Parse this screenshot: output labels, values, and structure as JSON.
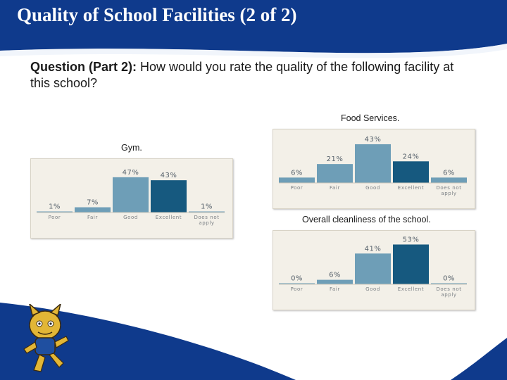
{
  "slide": {
    "title": "Quality of School Facilities (2 of 2)",
    "question_label": "Question (Part 2):",
    "question_text": " How would you rate the quality of the following facility at this school?",
    "colors": {
      "header_navy": "#0f3a8c",
      "bar_light": "#6e9eb7",
      "bar_dark": "#16597f",
      "chart_bg": "#f3f0e8"
    },
    "mascot_icon": "wildcat-mascot-icon"
  },
  "chart_data": [
    {
      "type": "bar",
      "title": "Gym.",
      "categories": [
        "Poor",
        "Fair",
        "Good",
        "Excellent",
        "Does not apply"
      ],
      "category_display": [
        [
          "Poor"
        ],
        [
          "Fair"
        ],
        [
          "Good"
        ],
        [
          "Excellent"
        ],
        [
          "Does not",
          "apply"
        ]
      ],
      "values": [
        1,
        7,
        47,
        43,
        1
      ],
      "data_labels": [
        "1%",
        "7%",
        "47%",
        "43%",
        "1%"
      ],
      "unit": "%",
      "ylim": [
        0,
        60
      ],
      "grid": false,
      "highlight_category": "Excellent"
    },
    {
      "type": "bar",
      "title": "Food Services.",
      "categories": [
        "Poor",
        "Fair",
        "Good",
        "Excellent",
        "Does not apply"
      ],
      "category_display": [
        [
          "Poor"
        ],
        [
          "Fair"
        ],
        [
          "Good"
        ],
        [
          "Excellent"
        ],
        [
          "Does not",
          "apply"
        ]
      ],
      "values": [
        6,
        21,
        43,
        24,
        6
      ],
      "data_labels": [
        "6%",
        "21%",
        "43%",
        "24%",
        "6%"
      ],
      "unit": "%",
      "ylim": [
        0,
        50
      ],
      "grid": false,
      "highlight_category": "Excellent"
    },
    {
      "type": "bar",
      "title": "Overall cleanliness of the school.",
      "categories": [
        "Poor",
        "Fair",
        "Good",
        "Excellent",
        "Does not apply"
      ],
      "category_display": [
        [
          "Poor"
        ],
        [
          "Fair"
        ],
        [
          "Good"
        ],
        [
          "Excellent"
        ],
        [
          "Does not",
          "apply"
        ]
      ],
      "values": [
        0,
        6,
        41,
        53,
        0
      ],
      "data_labels": [
        "0%",
        "6%",
        "41%",
        "53%",
        "0%"
      ],
      "unit": "%",
      "ylim": [
        0,
        60
      ],
      "grid": false,
      "highlight_category": "Excellent"
    }
  ]
}
